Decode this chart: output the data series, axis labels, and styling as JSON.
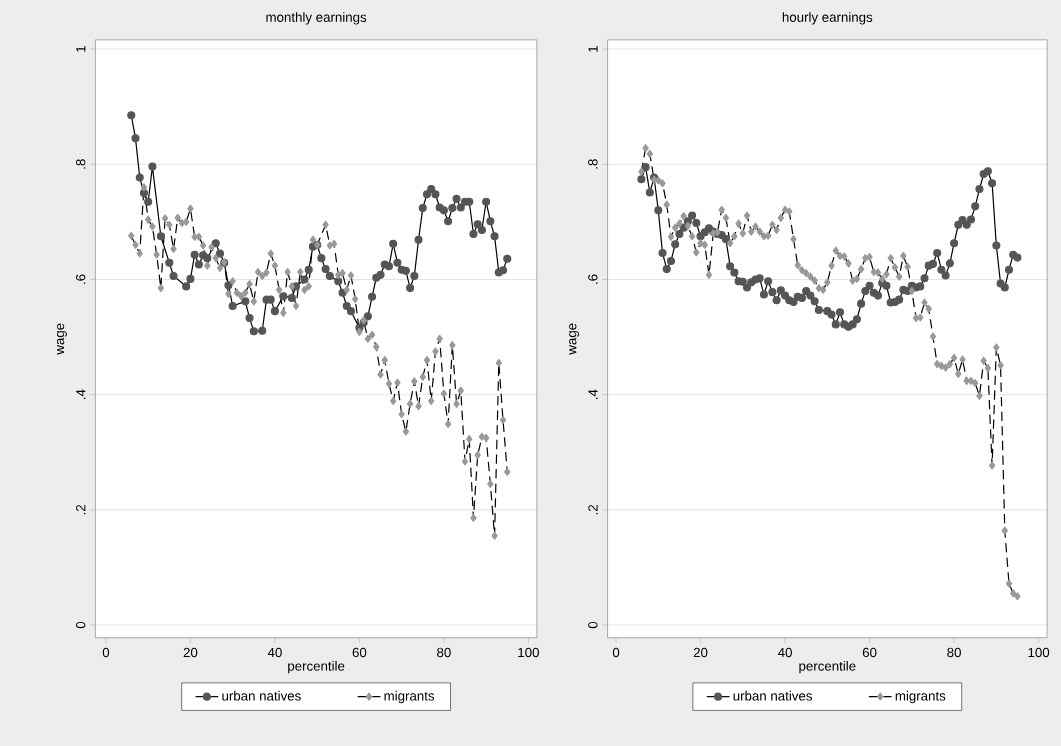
{
  "chart_data": [
    {
      "type": "line",
      "title": "monthly earnings",
      "xlabel": "percentile",
      "ylabel": "wage",
      "xlim": [
        -2.5,
        102
      ],
      "ylim": [
        -0.022,
        1.016
      ],
      "xticks": [
        0,
        20,
        40,
        60,
        80,
        100
      ],
      "yticks": [
        0,
        {
          "value": 0.2,
          "label": ".2"
        },
        {
          "value": 0.4,
          "label": ".4"
        },
        {
          "value": 0.6,
          "label": ".6"
        },
        {
          "value": 0.8,
          "label": ".8"
        },
        1
      ],
      "grid": "y",
      "legend": "bottom",
      "series": [
        {
          "name": "urban natives",
          "color": "#555555",
          "marker": "circle",
          "line_style": "solid",
          "x": [
            6,
            7,
            8,
            9,
            10,
            11,
            13,
            15,
            16,
            19,
            20,
            21,
            22,
            23,
            24,
            26,
            27,
            28,
            29,
            30,
            33,
            34,
            35,
            37,
            38,
            39,
            40,
            42,
            44,
            45,
            47,
            48,
            49,
            50,
            51,
            52,
            53,
            55,
            56,
            57,
            58,
            60,
            61,
            62,
            63,
            64,
            65,
            66,
            67,
            68,
            69,
            70,
            71,
            72,
            73,
            74,
            75,
            76,
            77,
            78,
            79,
            80,
            81,
            82,
            83,
            84,
            85,
            86,
            87,
            88,
            89,
            90,
            91,
            92,
            93,
            94,
            95
          ],
          "values": [
            0.885,
            0.845,
            0.777,
            0.75,
            0.735,
            0.796,
            0.675,
            0.629,
            0.606,
            0.588,
            0.601,
            0.643,
            0.626,
            0.642,
            0.637,
            0.663,
            0.645,
            0.629,
            0.59,
            0.554,
            0.562,
            0.533,
            0.51,
            0.511,
            0.565,
            0.565,
            0.545,
            0.571,
            0.568,
            0.588,
            0.6,
            0.617,
            0.657,
            0.66,
            0.637,
            0.618,
            0.606,
            0.597,
            0.577,
            0.554,
            0.545,
            0.516,
            0.525,
            0.536,
            0.57,
            0.603,
            0.608,
            0.626,
            0.623,
            0.662,
            0.629,
            0.617,
            0.615,
            0.585,
            0.606,
            0.669,
            0.724,
            0.748,
            0.757,
            0.748,
            0.725,
            0.72,
            0.701,
            0.724,
            0.74,
            0.725,
            0.735,
            0.735,
            0.679,
            0.696,
            0.686,
            0.735,
            0.701,
            0.675,
            0.612,
            0.616,
            0.636
          ]
        },
        {
          "name": "migrants",
          "color": "#999999",
          "marker": "diamond",
          "line_style": "dashed",
          "x": [
            6,
            7,
            8,
            9,
            10,
            11,
            12,
            13,
            14,
            15,
            16,
            17,
            18,
            19,
            20,
            21,
            22,
            23,
            24,
            25,
            26,
            27,
            28,
            29,
            30,
            31,
            32,
            33,
            34,
            35,
            36,
            37,
            38,
            39,
            40,
            41,
            42,
            43,
            44,
            45,
            46,
            47,
            48,
            49,
            50,
            52,
            53,
            54,
            55,
            56,
            57,
            58,
            59,
            60,
            61,
            62,
            63,
            64,
            65,
            66,
            67,
            68,
            69,
            70,
            71,
            72,
            73,
            74,
            75,
            76,
            77,
            78,
            79,
            80,
            81,
            82,
            83,
            84,
            85,
            86,
            87,
            88,
            89,
            90,
            91,
            92,
            93,
            94,
            95
          ],
          "values": [
            0.676,
            0.66,
            0.645,
            0.76,
            0.704,
            0.692,
            0.643,
            0.585,
            0.706,
            0.695,
            0.653,
            0.707,
            0.698,
            0.7,
            0.723,
            0.674,
            0.674,
            0.659,
            0.624,
            0.656,
            0.637,
            0.62,
            0.63,
            0.575,
            0.597,
            0.577,
            0.571,
            0.577,
            0.592,
            0.562,
            0.613,
            0.606,
            0.612,
            0.645,
            0.624,
            0.582,
            0.542,
            0.613,
            0.588,
            0.554,
            0.613,
            0.582,
            0.588,
            0.669,
            0.66,
            0.695,
            0.659,
            0.662,
            0.608,
            0.611,
            0.582,
            0.607,
            0.566,
            0.509,
            0.529,
            0.497,
            0.504,
            0.483,
            0.435,
            0.46,
            0.419,
            0.389,
            0.421,
            0.366,
            0.336,
            0.384,
            0.423,
            0.38,
            0.431,
            0.46,
            0.389,
            0.475,
            0.497,
            0.402,
            0.349,
            0.486,
            0.384,
            0.407,
            0.284,
            0.323,
            0.186,
            0.295,
            0.327,
            0.325,
            0.245,
            0.155,
            0.455,
            0.356,
            0.266
          ]
        }
      ]
    },
    {
      "type": "line",
      "title": "hourly earnings",
      "xlabel": "percentile",
      "ylabel": "wage",
      "xlim": [
        -2,
        102
      ],
      "ylim": [
        -0.022,
        1.016
      ],
      "xticks": [
        0,
        20,
        40,
        60,
        80,
        100
      ],
      "yticks": [
        0,
        {
          "value": 0.2,
          "label": ".2"
        },
        {
          "value": 0.4,
          "label": ".4"
        },
        {
          "value": 0.6,
          "label": ".6"
        },
        {
          "value": 0.8,
          "label": ".8"
        },
        1
      ],
      "grid": "y",
      "legend": "bottom",
      "series": [
        {
          "name": "urban natives",
          "color": "#555555",
          "marker": "circle",
          "line_style": "solid",
          "x": [
            6,
            7,
            8,
            9,
            10,
            11,
            12,
            13,
            14,
            15,
            16,
            17,
            18,
            19,
            20,
            21,
            22,
            23,
            24,
            25,
            26,
            27,
            28,
            29,
            30,
            31,
            32,
            33,
            34,
            35,
            36,
            37,
            38,
            39,
            40,
            41,
            42,
            43,
            44,
            45,
            46,
            47,
            48,
            50,
            51,
            52,
            53,
            54,
            55,
            56,
            57,
            58,
            59,
            60,
            61,
            62,
            63,
            64,
            65,
            66,
            67,
            68,
            69,
            70,
            71,
            72,
            73,
            74,
            75,
            76,
            77,
            78,
            79,
            80,
            81,
            82,
            83,
            84,
            85,
            86,
            87,
            88,
            89,
            90,
            91,
            92,
            93,
            94,
            95
          ],
          "values": [
            0.774,
            0.795,
            0.751,
            0.777,
            0.72,
            0.646,
            0.618,
            0.632,
            0.661,
            0.679,
            0.69,
            0.701,
            0.711,
            0.698,
            0.675,
            0.682,
            0.689,
            0.683,
            0.679,
            0.677,
            0.67,
            0.623,
            0.612,
            0.597,
            0.596,
            0.586,
            0.595,
            0.6,
            0.602,
            0.574,
            0.597,
            0.578,
            0.564,
            0.581,
            0.572,
            0.564,
            0.561,
            0.57,
            0.568,
            0.58,
            0.572,
            0.562,
            0.547,
            0.545,
            0.539,
            0.522,
            0.543,
            0.522,
            0.518,
            0.522,
            0.531,
            0.558,
            0.58,
            0.589,
            0.577,
            0.572,
            0.594,
            0.589,
            0.56,
            0.561,
            0.565,
            0.582,
            0.58,
            0.589,
            0.586,
            0.588,
            0.602,
            0.624,
            0.627,
            0.646,
            0.617,
            0.607,
            0.628,
            0.663,
            0.695,
            0.703,
            0.695,
            0.704,
            0.727,
            0.757,
            0.783,
            0.788,
            0.767,
            0.659,
            0.593,
            0.586,
            0.617,
            0.643,
            0.638
          ]
        },
        {
          "name": "migrants",
          "color": "#999999",
          "marker": "diamond",
          "line_style": "dashed",
          "x": [
            6,
            7,
            8,
            9,
            10,
            11,
            12,
            13,
            14,
            15,
            16,
            17,
            18,
            19,
            20,
            21,
            22,
            23,
            24,
            25,
            26,
            27,
            28,
            29,
            30,
            31,
            32,
            33,
            34,
            35,
            36,
            37,
            38,
            39,
            40,
            41,
            42,
            43,
            44,
            45,
            46,
            47,
            48,
            49,
            50,
            51,
            52,
            53,
            54,
            55,
            56,
            57,
            58,
            59,
            60,
            61,
            62,
            63,
            64,
            65,
            66,
            67,
            68,
            69,
            70,
            71,
            72,
            73,
            74,
            75,
            76,
            77,
            78,
            79,
            80,
            81,
            82,
            83,
            84,
            85,
            86,
            87,
            88,
            89,
            90,
            91,
            92,
            93,
            94,
            95
          ],
          "values": [
            0.787,
            0.828,
            0.818,
            0.773,
            0.772,
            0.767,
            0.73,
            0.674,
            0.69,
            0.697,
            0.71,
            0.693,
            0.675,
            0.647,
            0.663,
            0.66,
            0.608,
            0.68,
            0.682,
            0.721,
            0.707,
            0.663,
            0.675,
            0.697,
            0.68,
            0.711,
            0.683,
            0.692,
            0.683,
            0.675,
            0.676,
            0.695,
            0.686,
            0.707,
            0.721,
            0.718,
            0.67,
            0.625,
            0.616,
            0.611,
            0.605,
            0.598,
            0.585,
            0.582,
            0.595,
            0.624,
            0.65,
            0.641,
            0.64,
            0.628,
            0.598,
            0.601,
            0.618,
            0.637,
            0.639,
            0.613,
            0.612,
            0.601,
            0.609,
            0.637,
            0.621,
            0.605,
            0.641,
            0.622,
            0.58,
            0.533,
            0.534,
            0.56,
            0.549,
            0.501,
            0.453,
            0.45,
            0.447,
            0.453,
            0.464,
            0.436,
            0.461,
            0.424,
            0.424,
            0.42,
            0.398,
            0.459,
            0.446,
            0.277,
            0.482,
            0.451,
            0.164,
            0.072,
            0.055,
            0.05
          ]
        }
      ]
    }
  ]
}
